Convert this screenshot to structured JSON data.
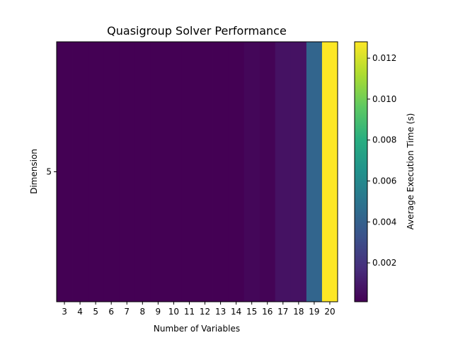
{
  "chart_data": {
    "type": "heatmap",
    "title": "Quasigroup Solver Performance",
    "xlabel": "Number of Variables",
    "ylabel": "Dimension",
    "x": [
      3,
      4,
      5,
      6,
      7,
      8,
      9,
      10,
      11,
      12,
      13,
      14,
      15,
      16,
      17,
      18,
      19,
      20
    ],
    "x_tick_labels": [
      "3",
      "4",
      "5",
      "6",
      "7",
      "8",
      "9",
      "10",
      "11",
      "12",
      "13",
      "14",
      "15",
      "16",
      "17",
      "18",
      "19",
      "20"
    ],
    "y": [
      5
    ],
    "y_tick_labels": [
      "5"
    ],
    "values": [
      [
        0.0001,
        0.0001,
        0.0001,
        0.0001,
        0.0001,
        0.0001,
        0.0001,
        0.0001,
        0.0001,
        0.0001,
        0.0001,
        0.0001,
        0.0003,
        0.0002,
        0.0007,
        0.0007,
        0.0042,
        0.0128
      ]
    ],
    "colormap": "viridis",
    "colorbar": {
      "label": "Average Execution Time (s)",
      "range": [
        0.0001,
        0.0128
      ],
      "ticks": [
        0.002,
        0.004,
        0.006,
        0.008,
        0.01,
        0.012
      ],
      "tick_labels": [
        "0.002",
        "0.004",
        "0.006",
        "0.008",
        "0.010",
        "0.012"
      ]
    },
    "grid": false
  }
}
